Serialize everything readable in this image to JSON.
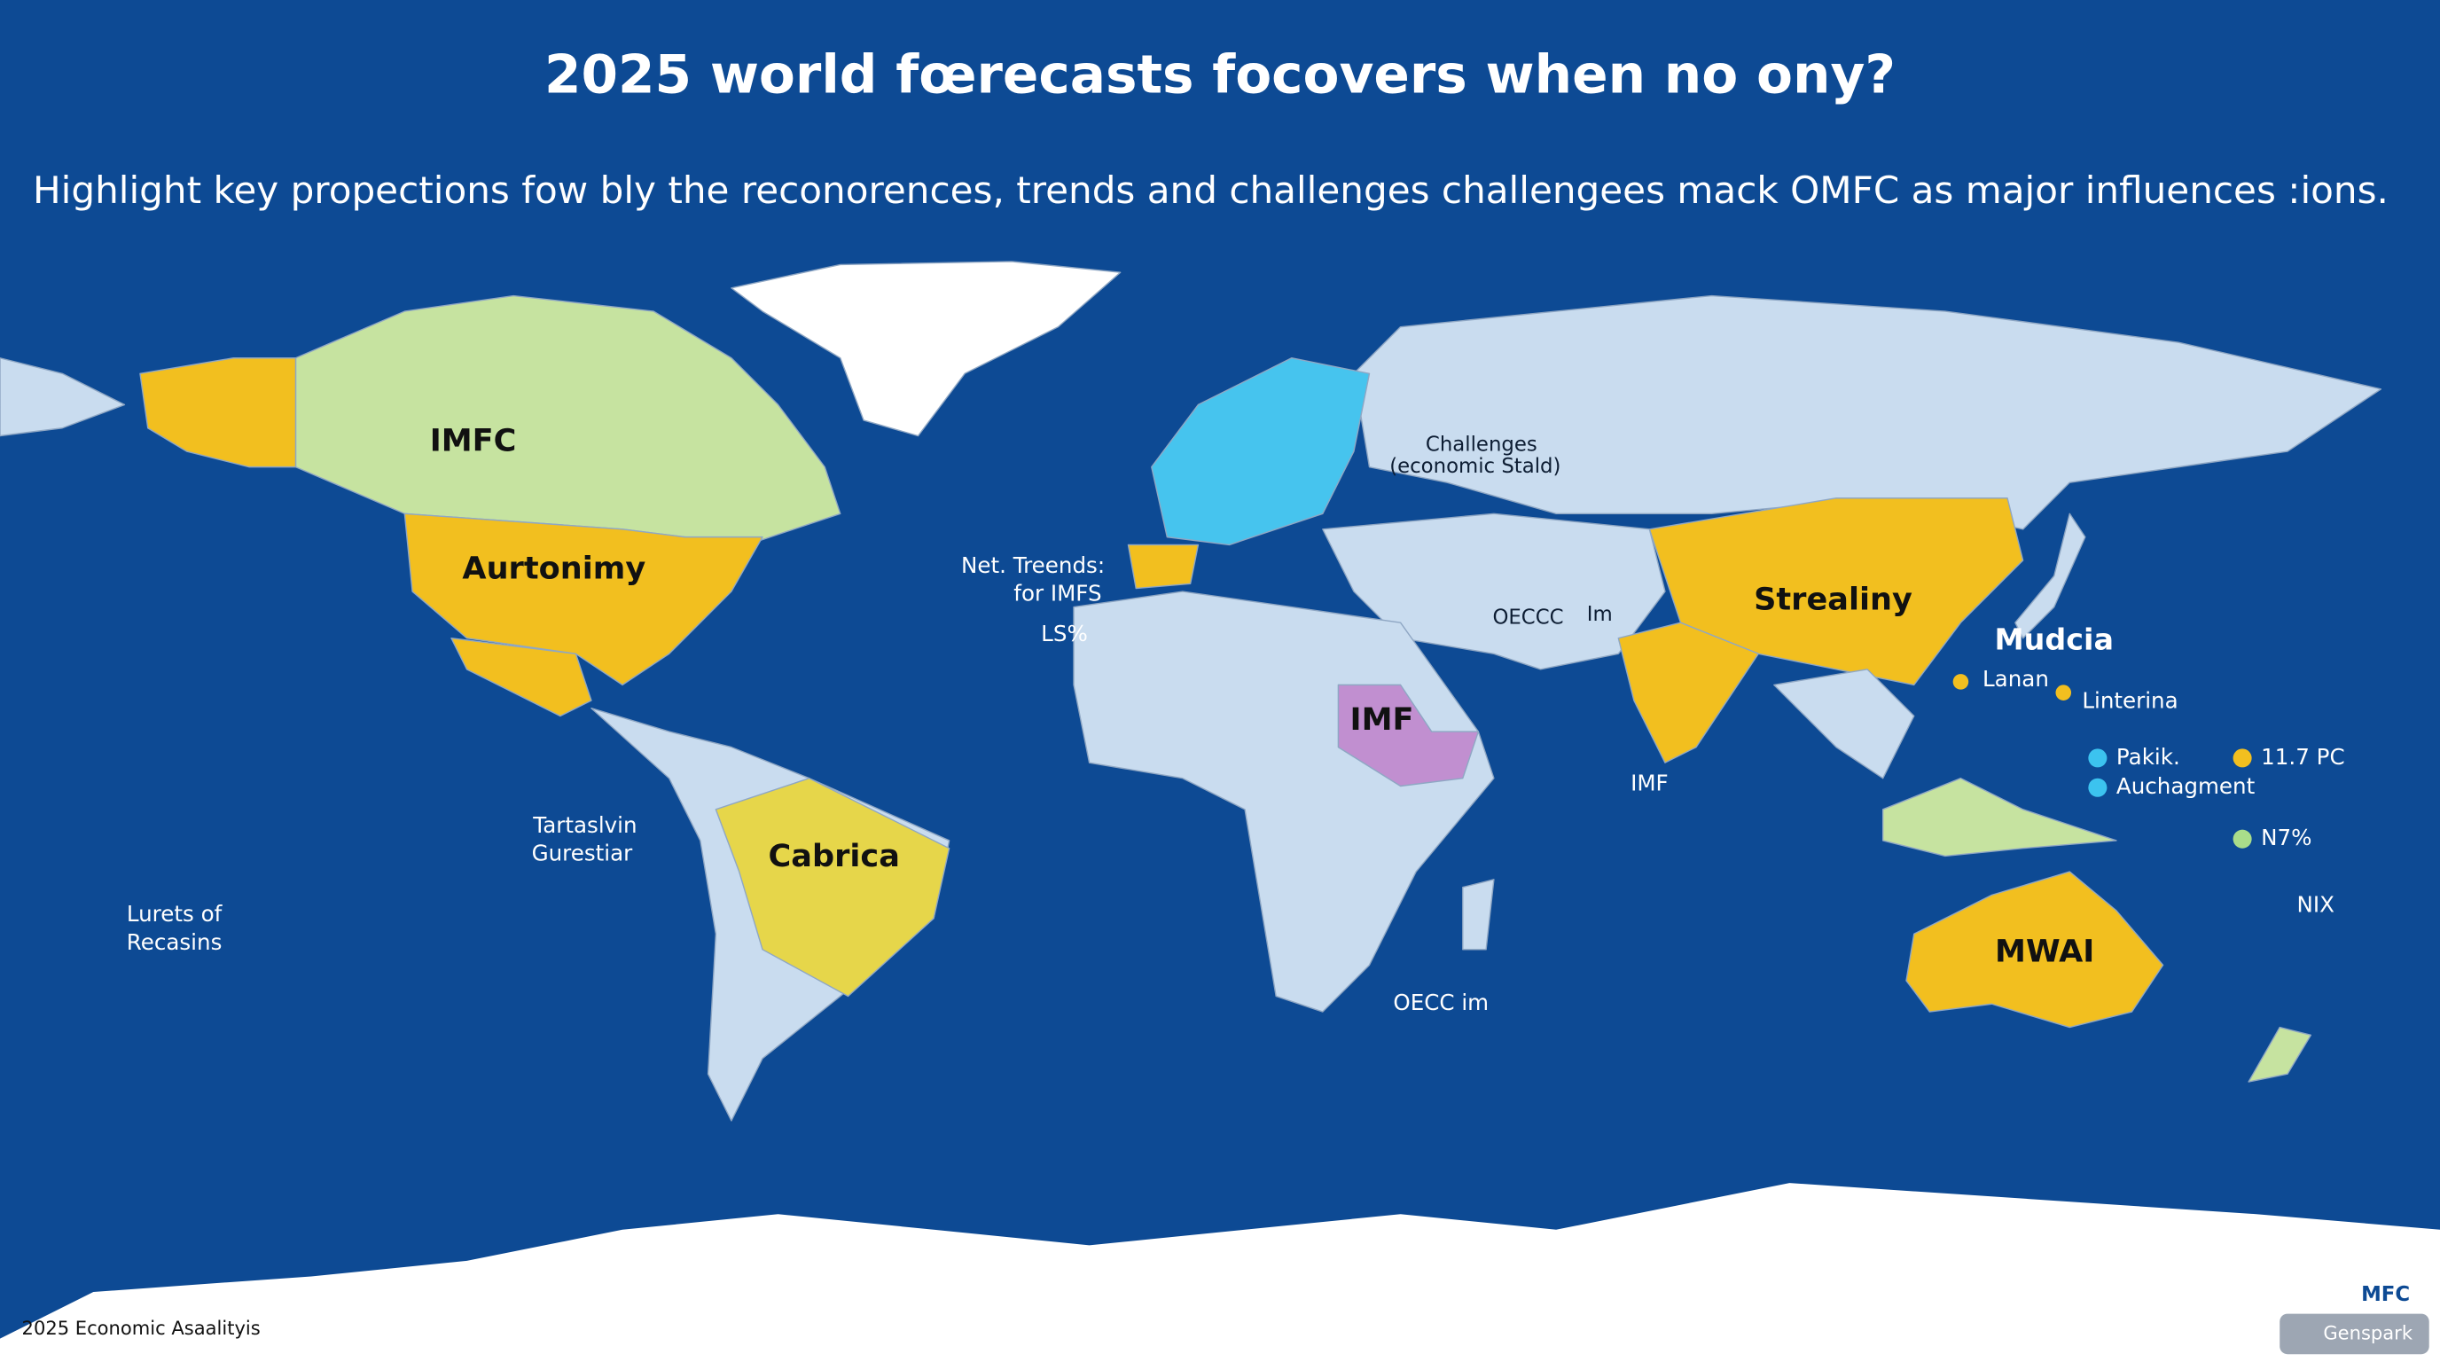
{
  "header": {
    "title": "2025 world fœrecasts focovers when no ony?",
    "subtitle": "Highlight key propections fow bly the reconorences, trends and challenges challengees mack OMFC as major influences :ions."
  },
  "labels": [
    {
      "lines": [
        "IMFC"
      ]
    },
    {
      "lines": [
        "Aurtonimy"
      ]
    },
    {
      "lines": [
        "Cabrica"
      ]
    },
    {
      "lines": [
        "Strealiny"
      ]
    },
    {
      "lines": [
        "MWAI"
      ]
    },
    {
      "lines": [
        "IMF"
      ]
    },
    {
      "lines": [
        "Challenges",
        "(economic Stald)"
      ]
    },
    {
      "lines": [
        "Net. Treends:",
        "for  IMFS"
      ]
    },
    {
      "lines": [
        "LS%"
      ]
    },
    {
      "lines": [
        "OECCC"
      ]
    },
    {
      "lines": [
        "Im"
      ]
    },
    {
      "lines": [
        "Mudcia"
      ]
    },
    {
      "lines": [
        "Lanan"
      ]
    },
    {
      "lines": [
        "Linterina"
      ]
    },
    {
      "lines": [
        "IMF"
      ]
    },
    {
      "lines": [
        "Tartaslvin",
        "Gurestiar"
      ]
    },
    {
      "lines": [
        "Lurets of",
        "Recasins"
      ]
    },
    {
      "lines": [
        "OECC im"
      ]
    },
    {
      "lines": [
        "NIX"
      ]
    }
  ],
  "legend": [
    {
      "name": "Pakik.",
      "color": "#3cc3ef"
    },
    {
      "name": "Auchagment",
      "color": "#3cc3ef"
    },
    {
      "name": "11.7 PC",
      "color": "#f2bf1f"
    },
    {
      "name": "N7%",
      "color": "#a9dd8a"
    }
  ],
  "footer": {
    "text": "2025 Economic Asaalityis",
    "badge": "MFC",
    "watermark": "Genspark"
  }
}
